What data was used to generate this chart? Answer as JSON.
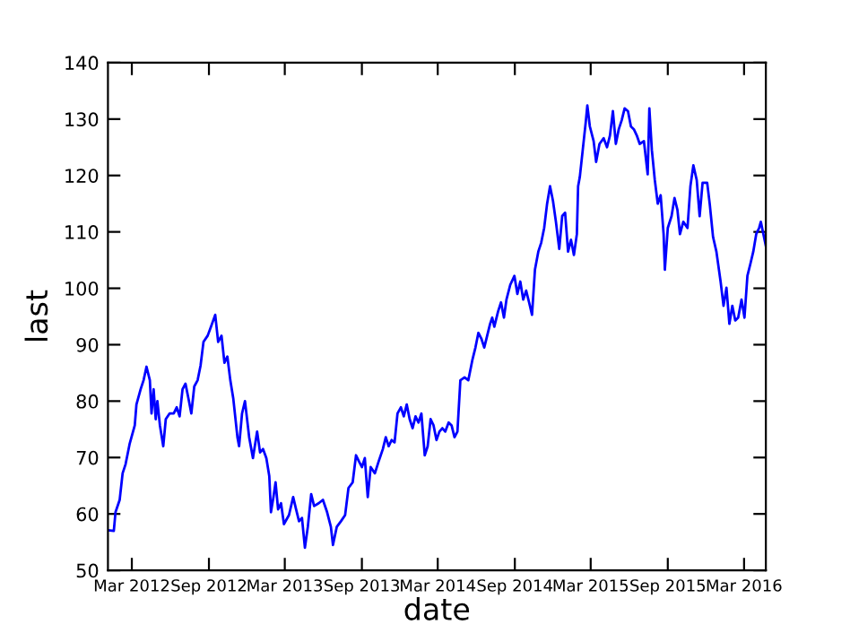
{
  "chart_data": {
    "type": "line",
    "xlabel": "date",
    "ylabel": "last",
    "x": [
      "2012-01-04",
      "2012-01-18",
      "2012-01-22",
      "2012-02-01",
      "2012-02-08",
      "2012-02-15",
      "2012-02-25",
      "2012-03-08",
      "2012-03-12",
      "2012-03-22",
      "2012-03-29",
      "2012-04-05",
      "2012-04-13",
      "2012-04-17",
      "2012-04-22",
      "2012-04-27",
      "2012-05-01",
      "2012-05-07",
      "2012-05-15",
      "2012-05-21",
      "2012-05-30",
      "2012-06-09",
      "2012-06-16",
      "2012-06-23",
      "2012-06-30",
      "2012-07-07",
      "2012-07-14",
      "2012-07-21",
      "2012-07-28",
      "2012-08-05",
      "2012-08-12",
      "2012-08-19",
      "2012-08-29",
      "2012-09-06",
      "2012-09-16",
      "2012-09-23",
      "2012-10-01",
      "2012-10-08",
      "2012-10-15",
      "2012-10-22",
      "2012-10-29",
      "2012-11-08",
      "2012-11-12",
      "2012-11-19",
      "2012-11-26",
      "2012-12-06",
      "2012-12-15",
      "2012-12-25",
      "2013-01-01",
      "2013-01-08",
      "2013-01-16",
      "2013-01-23",
      "2013-01-27",
      "2013-02-02",
      "2013-02-07",
      "2013-02-13",
      "2013-02-20",
      "2013-02-27",
      "2013-03-11",
      "2013-03-21",
      "2013-03-28",
      "2013-04-04",
      "2013-04-11",
      "2013-04-18",
      "2013-04-25",
      "2013-05-03",
      "2013-05-10",
      "2013-05-21",
      "2013-05-31",
      "2013-06-10",
      "2013-06-19",
      "2013-06-24",
      "2013-07-03",
      "2013-07-13",
      "2013-07-23",
      "2013-07-31",
      "2013-08-10",
      "2013-08-18",
      "2013-08-25",
      "2013-09-01",
      "2013-09-08",
      "2013-09-15",
      "2013-09-22",
      "2013-10-02",
      "2013-10-11",
      "2013-10-21",
      "2013-10-28",
      "2013-11-04",
      "2013-11-11",
      "2013-11-18",
      "2013-11-25",
      "2013-12-03",
      "2013-12-10",
      "2013-12-17",
      "2013-12-24",
      "2013-12-31",
      "2014-01-07",
      "2014-01-14",
      "2014-01-21",
      "2014-01-29",
      "2014-02-05",
      "2014-02-12",
      "2014-02-19",
      "2014-02-26",
      "2014-03-05",
      "2014-03-12",
      "2014-03-19",
      "2014-03-27",
      "2014-04-03",
      "2014-04-10",
      "2014-04-17",
      "2014-04-24",
      "2014-05-04",
      "2014-05-13",
      "2014-05-23",
      "2014-05-30",
      "2014-06-06",
      "2014-06-13",
      "2014-06-20",
      "2014-06-27",
      "2014-07-04",
      "2014-07-09",
      "2014-07-14",
      "2014-07-23",
      "2014-07-30",
      "2014-08-06",
      "2014-08-12",
      "2014-08-21",
      "2014-08-31",
      "2014-09-07",
      "2014-09-14",
      "2014-09-21",
      "2014-09-28",
      "2014-10-05",
      "2014-10-12",
      "2014-10-19",
      "2014-10-27",
      "2014-11-03",
      "2014-11-10",
      "2014-11-17",
      "2014-11-24",
      "2014-12-01",
      "2014-12-08",
      "2014-12-16",
      "2014-12-23",
      "2014-12-30",
      "2015-01-06",
      "2015-01-13",
      "2015-01-20",
      "2015-01-27",
      "2015-01-30",
      "2015-02-03",
      "2015-02-10",
      "2015-02-17",
      "2015-02-21",
      "2015-02-27",
      "2015-03-08",
      "2015-03-14",
      "2015-03-22",
      "2015-04-01",
      "2015-04-09",
      "2015-04-16",
      "2015-04-23",
      "2015-04-30",
      "2015-05-07",
      "2015-05-14",
      "2015-05-21",
      "2015-05-29",
      "2015-06-05",
      "2015-06-12",
      "2015-06-19",
      "2015-06-26",
      "2015-07-06",
      "2015-07-15",
      "2015-07-19",
      "2015-07-25",
      "2015-08-01",
      "2015-08-08",
      "2015-08-15",
      "2015-08-22",
      "2015-08-25",
      "2015-09-01",
      "2015-09-10",
      "2015-09-17",
      "2015-09-24",
      "2015-09-30",
      "2015-10-08",
      "2015-10-18",
      "2015-10-25",
      "2015-11-01",
      "2015-11-09",
      "2015-11-16",
      "2015-11-23",
      "2015-12-04",
      "2015-12-10",
      "2015-12-18",
      "2015-12-26",
      "2016-01-05",
      "2016-01-12",
      "2016-01-19",
      "2016-01-26",
      "2016-02-02",
      "2016-02-09",
      "2016-02-16",
      "2016-02-24",
      "2016-03-02",
      "2016-03-09",
      "2016-03-16",
      "2016-03-23",
      "2016-03-30",
      "2016-04-06",
      "2016-04-10",
      "2016-04-22"
    ],
    "series": [
      {
        "color": "#0000ff",
        "values": [
          57.1,
          57.0,
          60.3,
          62.5,
          67.2,
          68.8,
          72.5,
          75.7,
          79.4,
          82.1,
          83.7,
          86.1,
          83.7,
          77.8,
          82.1,
          76.8,
          80.0,
          75.7,
          72.0,
          76.8,
          77.8,
          77.8,
          78.9,
          77.3,
          82.1,
          83.1,
          80.5,
          77.8,
          82.6,
          83.7,
          86.3,
          90.5,
          91.6,
          93.2,
          95.3,
          90.5,
          91.6,
          86.8,
          87.9,
          83.7,
          80.5,
          73.6,
          72.0,
          77.8,
          80.0,
          73.6,
          69.9,
          74.6,
          70.9,
          71.5,
          69.9,
          66.7,
          60.3,
          63.0,
          65.6,
          60.8,
          61.9,
          58.2,
          59.8,
          63.0,
          60.8,
          58.7,
          59.3,
          54.0,
          57.7,
          63.5,
          61.4,
          61.9,
          62.5,
          60.3,
          57.7,
          54.5,
          57.7,
          58.7,
          59.8,
          64.6,
          65.6,
          70.4,
          69.3,
          68.3,
          69.9,
          63.0,
          68.3,
          67.2,
          69.3,
          71.5,
          73.6,
          72.0,
          73.1,
          72.7,
          77.8,
          78.9,
          77.3,
          79.4,
          76.8,
          75.2,
          77.3,
          76.2,
          77.8,
          70.4,
          72.0,
          76.8,
          75.7,
          73.1,
          74.6,
          75.2,
          74.6,
          76.2,
          75.7,
          73.6,
          74.6,
          83.7,
          84.2,
          83.7,
          87.4,
          89.5,
          92.1,
          91.1,
          89.5,
          91.6,
          93.7,
          94.8,
          93.2,
          95.9,
          97.5,
          94.8,
          98.0,
          100.6,
          102.2,
          99.0,
          101.2,
          98.0,
          99.6,
          97.5,
          95.3,
          103.3,
          106.5,
          108.1,
          110.7,
          115.0,
          118.1,
          115.5,
          111.8,
          107.0,
          112.8,
          113.4,
          106.5,
          108.6,
          105.9,
          109.6,
          118.1,
          119.7,
          124.5,
          129.3,
          132.4,
          128.7,
          126.1,
          122.4,
          125.6,
          126.6,
          125.0,
          127.1,
          131.4,
          125.6,
          128.2,
          129.8,
          131.9,
          131.4,
          128.7,
          128.2,
          127.1,
          125.6,
          126.1,
          120.2,
          131.9,
          124.5,
          119.2,
          115.0,
          116.5,
          109.6,
          103.3,
          110.7,
          112.8,
          116.0,
          113.9,
          109.6,
          111.8,
          110.7,
          118.1,
          121.8,
          119.2,
          112.8,
          118.7,
          118.7,
          115.0,
          109.1,
          106.5,
          101.2,
          96.9,
          100.1,
          93.7,
          96.9,
          94.3,
          94.8,
          98.0,
          94.8,
          102.2,
          104.3,
          106.5,
          109.6,
          110.7,
          111.8,
          107.5
        ]
      }
    ],
    "xlim": [
      "2012-01-04",
      "2016-04-22"
    ],
    "xticks": [
      {
        "value": "2012-03-01",
        "label": "Mar 2012"
      },
      {
        "value": "2012-09-01",
        "label": "Sep 2012"
      },
      {
        "value": "2013-03-01",
        "label": "Mar 2013"
      },
      {
        "value": "2013-09-01",
        "label": "Sep 2013"
      },
      {
        "value": "2014-03-01",
        "label": "Mar 2014"
      },
      {
        "value": "2014-09-01",
        "label": "Sep 2014"
      },
      {
        "value": "2015-03-01",
        "label": "Mar 2015"
      },
      {
        "value": "2015-09-01",
        "label": "Sep 2015"
      },
      {
        "value": "2016-03-01",
        "label": "Mar 2016"
      }
    ],
    "ylim": [
      50,
      140
    ],
    "yticks": [
      50,
      60,
      70,
      80,
      90,
      100,
      110,
      120,
      130,
      140
    ],
    "grid": false,
    "marker": "none",
    "line_style": "solid"
  }
}
